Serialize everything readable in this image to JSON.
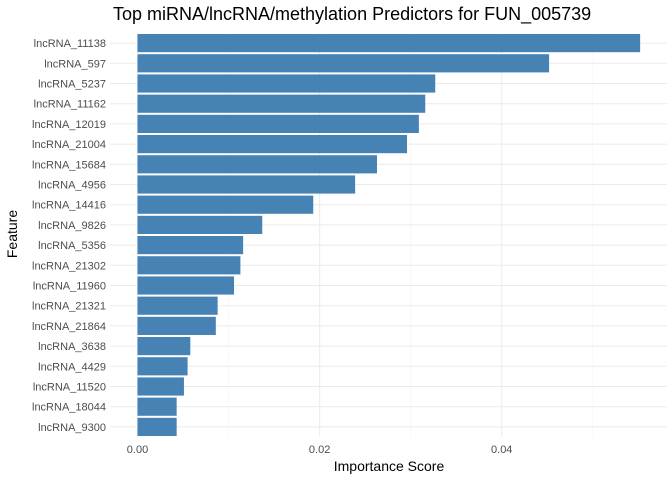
{
  "chart_data": {
    "type": "bar",
    "orientation": "horizontal",
    "title": "Top miRNA/lncRNA/methylation Predictors for FUN_005739",
    "xlabel": "Importance Score",
    "ylabel": "Feature",
    "xlim": [
      0,
      0.0555
    ],
    "x_ticks": [
      0,
      0.02,
      0.04
    ],
    "x_tick_labels": [
      "0.00",
      "0.02",
      "0.04"
    ],
    "grid": true,
    "bar_color": "#4682b4",
    "categories": [
      "lncRNA_11138",
      "lncRNA_597",
      "lncRNA_5237",
      "lncRNA_11162",
      "lncRNA_12019",
      "lncRNA_21004",
      "lncRNA_15684",
      "lncRNA_4956",
      "lncRNA_14416",
      "lncRNA_9826",
      "lncRNA_5356",
      "lncRNA_21302",
      "lncRNA_11960",
      "lncRNA_21321",
      "lncRNA_21864",
      "lncRNA_3638",
      "lncRNA_4429",
      "lncRNA_11520",
      "lncRNA_18044",
      "lncRNA_9300"
    ],
    "values": [
      0.0552,
      0.0452,
      0.0327,
      0.0316,
      0.0309,
      0.0296,
      0.0263,
      0.0239,
      0.0193,
      0.0137,
      0.0116,
      0.0113,
      0.0106,
      0.0088,
      0.0086,
      0.0058,
      0.0055,
      0.0051,
      0.0043,
      0.0043
    ]
  }
}
